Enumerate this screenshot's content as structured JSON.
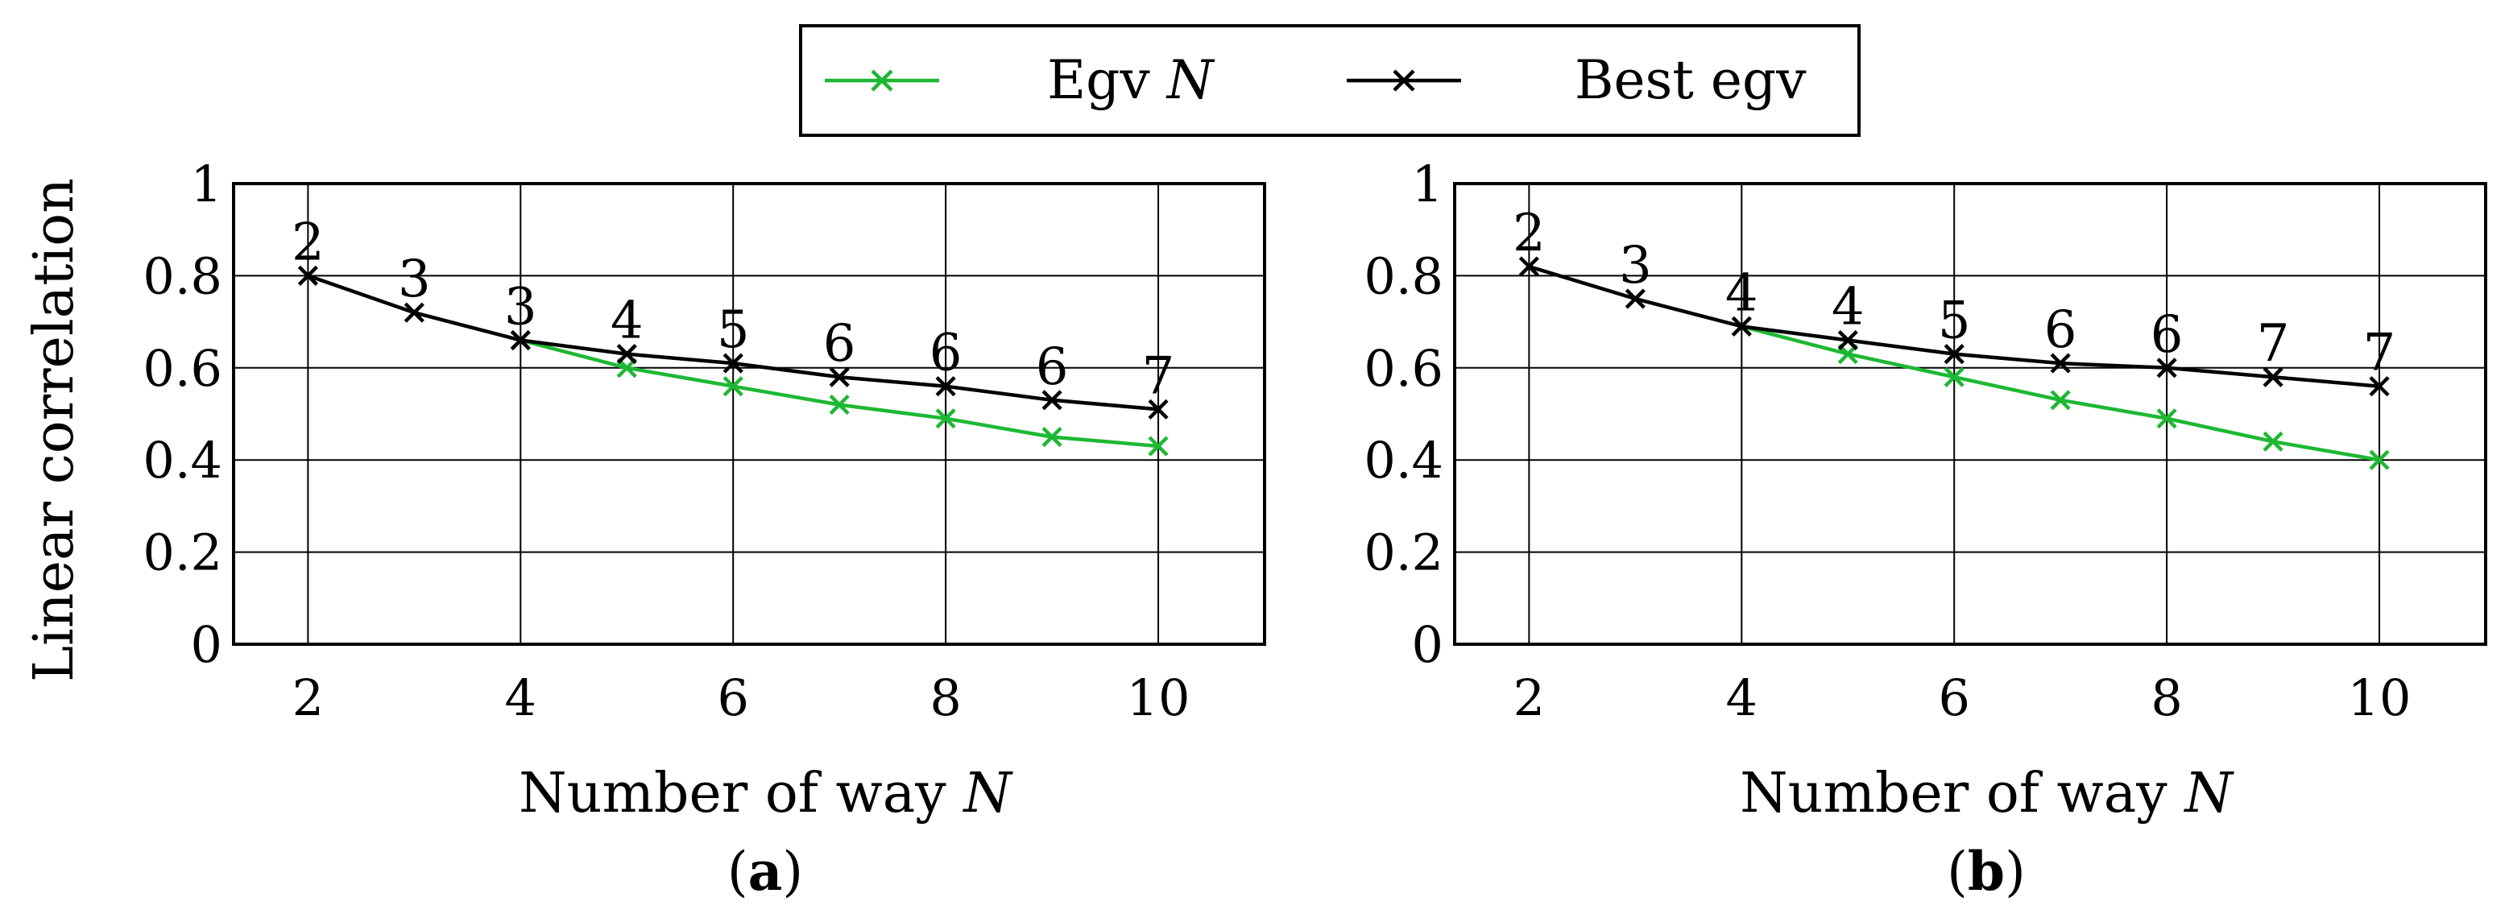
{
  "legend": {
    "entries": [
      {
        "label_pre": "Egv ",
        "label_var": "N",
        "color": "#1db833"
      },
      {
        "label_pre": "Best egv",
        "label_var": "",
        "color": "#000000"
      }
    ]
  },
  "chart_data": [
    {
      "type": "line",
      "panel_label": "a",
      "xlabel_pre": "Number of way ",
      "xlabel_var": "N",
      "ylabel": "Linear correlation",
      "xlim": [
        1.3,
        11.0
      ],
      "ylim": [
        0,
        1
      ],
      "xticks": [
        2,
        4,
        6,
        8,
        10
      ],
      "yticks": [
        0,
        0.2,
        0.4,
        0.6,
        0.8,
        1
      ],
      "ytick_labels": [
        "0",
        "0.2",
        "0.4",
        "0.6",
        "0.8",
        "1"
      ],
      "series": [
        {
          "name": "Best egv",
          "color": "#000000",
          "x": [
            2,
            3,
            4,
            5,
            6,
            7,
            8,
            9,
            10
          ],
          "y": [
            0.8,
            0.72,
            0.66,
            0.63,
            0.61,
            0.58,
            0.56,
            0.53,
            0.51
          ]
        },
        {
          "name": "Egv N",
          "color": "#1db833",
          "x": [
            4,
            5,
            6,
            7,
            8,
            9,
            10
          ],
          "y": [
            0.66,
            0.6,
            0.56,
            0.52,
            0.49,
            0.45,
            0.43
          ]
        }
      ],
      "point_labels": {
        "x": [
          2,
          3,
          4,
          5,
          6,
          7,
          8,
          9,
          10
        ],
        "labels": [
          "2",
          "3",
          "3",
          "4",
          "5",
          "6",
          "6",
          "6",
          "7"
        ]
      }
    },
    {
      "type": "line",
      "panel_label": "b",
      "xlabel_pre": "Number of way ",
      "xlabel_var": "N",
      "ylabel": "",
      "xlim": [
        1.3,
        11.0
      ],
      "ylim": [
        0,
        1
      ],
      "xticks": [
        2,
        4,
        6,
        8,
        10
      ],
      "yticks": [
        0,
        0.2,
        0.4,
        0.6,
        0.8,
        1
      ],
      "ytick_labels": [
        "0",
        "0.2",
        "0.4",
        "0.6",
        "0.8",
        "1"
      ],
      "series": [
        {
          "name": "Best egv",
          "color": "#000000",
          "x": [
            2,
            3,
            4,
            5,
            6,
            7,
            8,
            9,
            10
          ],
          "y": [
            0.82,
            0.75,
            0.69,
            0.66,
            0.63,
            0.61,
            0.6,
            0.58,
            0.56
          ]
        },
        {
          "name": "Egv N",
          "color": "#1db833",
          "x": [
            4,
            5,
            6,
            7,
            8,
            9,
            10
          ],
          "y": [
            0.69,
            0.63,
            0.58,
            0.53,
            0.49,
            0.44,
            0.4
          ]
        }
      ],
      "point_labels": {
        "x": [
          2,
          3,
          4,
          5,
          6,
          7,
          8,
          9,
          10
        ],
        "labels": [
          "2",
          "3",
          "4",
          "4",
          "5",
          "6",
          "6",
          "7",
          "7"
        ]
      }
    }
  ]
}
